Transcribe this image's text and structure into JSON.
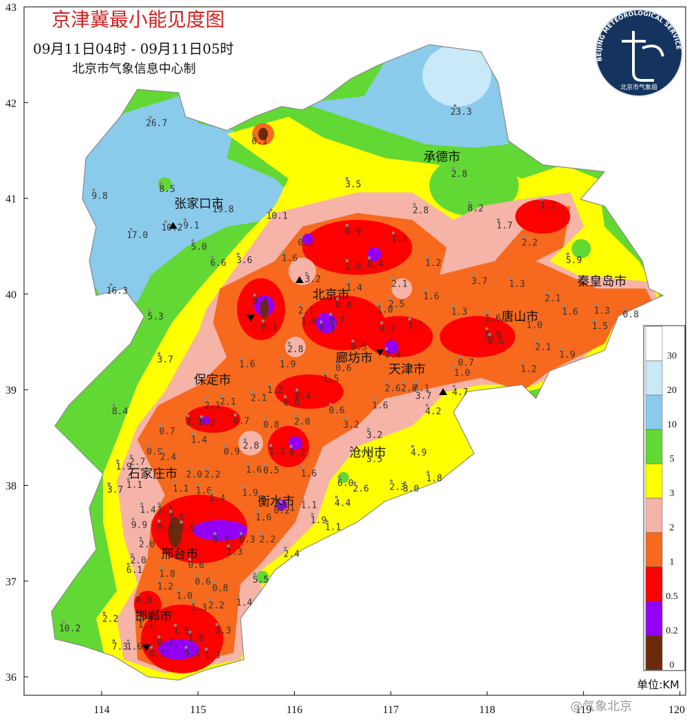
{
  "map": {
    "title": "京津冀最小能见度图",
    "subtitle": "09月11日04时 - 09月11日05时",
    "credit": "北京市气象信息中心制",
    "logo": {
      "ring": "BEIJING METEOROLOGICAL SERVICE",
      "name": "北京市气象局"
    },
    "watermark": "@气象北京",
    "xlim": [
      113.195,
      120.059
    ],
    "ylim": [
      35.807,
      43
    ],
    "xticks": [
      114,
      115,
      116,
      117,
      118,
      119,
      120
    ],
    "yticks": [
      36,
      37,
      38,
      39,
      40,
      41,
      42,
      43
    ],
    "legend": {
      "levels": [
        0,
        0.2,
        0.5,
        1,
        2,
        3,
        5,
        10,
        20,
        30
      ],
      "colors": [
        "#6b2a0a",
        "#9400f5",
        "#ff0000",
        "#f7691c",
        "#f6b3a8",
        "#ffff00",
        "#62d834",
        "#8acbec",
        "#c9e8f8",
        "#ffffff"
      ],
      "unit": "单位:KM"
    },
    "cities": [
      {
        "name": "张家口市",
        "lon": 115.01,
        "lat": 40.95
      },
      {
        "name": "承德市",
        "lon": 117.53,
        "lat": 41.44
      },
      {
        "name": "秦皇岛市",
        "lon": 119.19,
        "lat": 40.14
      },
      {
        "name": "北京市",
        "lon": 116.38,
        "lat": 40.0
      },
      {
        "name": "唐山市",
        "lon": 118.34,
        "lat": 39.77
      },
      {
        "name": "廊坊市",
        "lon": 116.62,
        "lat": 39.34
      },
      {
        "name": "天津市",
        "lon": 117.17,
        "lat": 39.22
      },
      {
        "name": "保定市",
        "lon": 115.15,
        "lat": 39.11
      },
      {
        "name": "沧州市",
        "lon": 116.76,
        "lat": 38.35
      },
      {
        "name": "石家庄市",
        "lon": 114.53,
        "lat": 38.13
      },
      {
        "name": "衡水市",
        "lon": 115.81,
        "lat": 37.84
      },
      {
        "name": "邢台市",
        "lon": 114.81,
        "lat": 37.29
      },
      {
        "name": "邯郸市",
        "lon": 114.54,
        "lat": 36.64
      }
    ],
    "stations": [
      {
        "lon": 117.73,
        "lat": 41.91,
        "value": 23.3
      },
      {
        "lon": 114.57,
        "lat": 41.79,
        "value": 26.7
      },
      {
        "lon": 115.64,
        "lat": 41.6,
        "value": 0.1
      },
      {
        "lon": 117.71,
        "lat": 41.26,
        "value": 2.8
      },
      {
        "lon": 114.68,
        "lat": 41.1,
        "value": 8.5
      },
      {
        "lon": 116.61,
        "lat": 41.15,
        "value": 3.5
      },
      {
        "lon": 113.98,
        "lat": 41.03,
        "value": 9.8
      },
      {
        "lon": 117.31,
        "lat": 40.88,
        "value": 2.8
      },
      {
        "lon": 117.88,
        "lat": 40.9,
        "value": 8.2
      },
      {
        "lon": 118.63,
        "lat": 40.93,
        "value": 1.1
      },
      {
        "lon": 115.26,
        "lat": 40.89,
        "value": 19.8
      },
      {
        "lon": 115.82,
        "lat": 40.82,
        "value": 10.1
      },
      {
        "lon": 114.73,
        "lat": 40.7,
        "value": 10.2
      },
      {
        "lon": 114.93,
        "lat": 40.72,
        "value": 9.1
      },
      {
        "lon": 118.18,
        "lat": 40.72,
        "value": 1.7
      },
      {
        "lon": 114.37,
        "lat": 40.62,
        "value": 17,
        "label": "17.0"
      },
      {
        "lon": 116.61,
        "lat": 40.66,
        "value": 0.9
      },
      {
        "lon": 115.01,
        "lat": 40.5,
        "value": 5,
        "label": "5.0"
      },
      {
        "lon": 116.12,
        "lat": 40.54,
        "value": 0.1
      },
      {
        "lon": 117.09,
        "lat": 40.58,
        "value": 1.1
      },
      {
        "lon": 118.44,
        "lat": 40.54,
        "value": 2.2
      },
      {
        "lon": 118.9,
        "lat": 40.36,
        "value": 5.9
      },
      {
        "lon": 115.21,
        "lat": 40.33,
        "value": 6.6
      },
      {
        "lon": 115.48,
        "lat": 40.36,
        "value": 3.6
      },
      {
        "lon": 115.95,
        "lat": 40.38,
        "value": 1.6
      },
      {
        "lon": 116.61,
        "lat": 40.29,
        "value": 1,
        "label": "1.0"
      },
      {
        "lon": 116.84,
        "lat": 40.32,
        "value": 0.4
      },
      {
        "lon": 117.44,
        "lat": 40.33,
        "value": 1.2
      },
      {
        "lon": 116.19,
        "lat": 40.16,
        "value": 3.2
      },
      {
        "lon": 117.92,
        "lat": 40.14,
        "value": 3.7
      },
      {
        "lon": 118.31,
        "lat": 40.11,
        "value": 1.3
      },
      {
        "lon": 114.16,
        "lat": 40.04,
        "value": 16.3
      },
      {
        "lon": 116.62,
        "lat": 40.07,
        "value": 1.4
      },
      {
        "lon": 117.09,
        "lat": 40.11,
        "value": 2.1
      },
      {
        "lon": 117.42,
        "lat": 39.98,
        "value": 1.6
      },
      {
        "lon": 118.68,
        "lat": 39.96,
        "value": 2.1
      },
      {
        "lon": 115.65,
        "lat": 39.93,
        "value": 0.1
      },
      {
        "lon": 117.06,
        "lat": 39.9,
        "value": 2.5
      },
      {
        "lon": 116.12,
        "lat": 39.83,
        "value": 2.1
      },
      {
        "lon": 116.51,
        "lat": 39.89,
        "value": 0.8
      },
      {
        "lon": 116.94,
        "lat": 39.84,
        "value": 1,
        "label": "1.0"
      },
      {
        "lon": 117.71,
        "lat": 39.82,
        "value": 1.3
      },
      {
        "lon": 118.86,
        "lat": 39.82,
        "value": 1.6
      },
      {
        "lon": 119.19,
        "lat": 39.83,
        "value": 1.3
      },
      {
        "lon": 119.49,
        "lat": 39.79,
        "value": 0.8
      },
      {
        "lon": 114.56,
        "lat": 39.77,
        "value": 5.3
      },
      {
        "lon": 116.15,
        "lat": 39.72,
        "value": 1,
        "label": "1.0"
      },
      {
        "lon": 116.44,
        "lat": 39.73,
        "value": 0.7
      },
      {
        "lon": 118.06,
        "lat": 39.75,
        "value": 1.6
      },
      {
        "lon": 115.74,
        "lat": 39.66,
        "value": 0.1
      },
      {
        "lon": 116.34,
        "lat": 39.65,
        "value": 0.1
      },
      {
        "lon": 117.26,
        "lat": 39.68,
        "value": 1.1
      },
      {
        "lon": 118.49,
        "lat": 39.68,
        "value": 1,
        "label": "1.0"
      },
      {
        "lon": 119.17,
        "lat": 39.67,
        "value": 1.5
      },
      {
        "lon": 116.97,
        "lat": 39.64,
        "value": 0.7
      },
      {
        "lon": 118.06,
        "lat": 39.58,
        "value": 0.9
      },
      {
        "lon": 118.09,
        "lat": 39.52,
        "value": 0.6
      },
      {
        "lon": 116.01,
        "lat": 39.43,
        "value": 2.8
      },
      {
        "lon": 116.67,
        "lat": 39.45,
        "value": 0.5
      },
      {
        "lon": 117.02,
        "lat": 39.37,
        "value": 0.4
      },
      {
        "lon": 118.58,
        "lat": 39.45,
        "value": 2.1
      },
      {
        "lon": 118.83,
        "lat": 39.37,
        "value": 1.9
      },
      {
        "lon": 114.66,
        "lat": 39.32,
        "value": 3.7
      },
      {
        "lon": 115.51,
        "lat": 39.27,
        "value": 1.6
      },
      {
        "lon": 115.93,
        "lat": 39.27,
        "value": 1.9
      },
      {
        "lon": 116.51,
        "lat": 39.23,
        "value": 0.6
      },
      {
        "lon": 117.78,
        "lat": 39.29,
        "value": 0.7
      },
      {
        "lon": 117.74,
        "lat": 39.18,
        "value": 1,
        "label": "1.0"
      },
      {
        "lon": 118.43,
        "lat": 39.22,
        "value": 1.2
      },
      {
        "lon": 116.38,
        "lat": 39.12,
        "value": 1.5
      },
      {
        "lon": 117.02,
        "lat": 39.02,
        "value": 2.6
      },
      {
        "lon": 117.19,
        "lat": 39.02,
        "value": 2.8
      },
      {
        "lon": 117.32,
        "lat": 39.02,
        "value": 4.1
      },
      {
        "lon": 117.72,
        "lat": 38.98,
        "value": 4.7
      },
      {
        "lon": 115.8,
        "lat": 39.0,
        "value": 1.2
      },
      {
        "lon": 117.34,
        "lat": 38.94,
        "value": 3.7
      },
      {
        "lon": 115.63,
        "lat": 38.92,
        "value": 2.1
      },
      {
        "lon": 116.09,
        "lat": 38.94,
        "value": 0.4
      },
      {
        "lon": 115.15,
        "lat": 38.84,
        "value": 2.1
      },
      {
        "lon": 115.31,
        "lat": 38.88,
        "value": 2.1
      },
      {
        "lon": 115.97,
        "lat": 38.87,
        "value": 0.8
      },
      {
        "lon": 116.89,
        "lat": 38.84,
        "value": 1.6
      },
      {
        "lon": 114.19,
        "lat": 38.78,
        "value": 8.4
      },
      {
        "lon": 117.44,
        "lat": 38.78,
        "value": 4.2
      },
      {
        "lon": 116.44,
        "lat": 38.79,
        "value": 0.6
      },
      {
        "lon": 114.96,
        "lat": 38.67,
        "value": 2.3
      },
      {
        "lon": 115.1,
        "lat": 38.66,
        "value": 0.2
      },
      {
        "lon": 115.45,
        "lat": 38.68,
        "value": 0.7
      },
      {
        "lon": 115.76,
        "lat": 38.64,
        "value": 0.8
      },
      {
        "lon": 116.08,
        "lat": 38.67,
        "value": 2,
        "label": "2.0"
      },
      {
        "lon": 116.59,
        "lat": 38.64,
        "value": 3.2
      },
      {
        "lon": 114.68,
        "lat": 38.57,
        "value": 0.7
      },
      {
        "lon": 115.01,
        "lat": 38.48,
        "value": 1.4
      },
      {
        "lon": 116.83,
        "lat": 38.53,
        "value": 3.2
      },
      {
        "lon": 115.55,
        "lat": 38.42,
        "value": 2.8
      },
      {
        "lon": 116.03,
        "lat": 38.35,
        "value": 0.2
      },
      {
        "lon": 114.55,
        "lat": 38.36,
        "value": 0.9
      },
      {
        "lon": 114.69,
        "lat": 38.3,
        "value": 2.4
      },
      {
        "lon": 115.35,
        "lat": 38.36,
        "value": 0.9
      },
      {
        "lon": 115.82,
        "lat": 38.36,
        "value": 1.3
      },
      {
        "lon": 117.29,
        "lat": 38.35,
        "value": 4.9
      },
      {
        "lon": 116.83,
        "lat": 38.28,
        "value": 3.5
      },
      {
        "lon": 114.23,
        "lat": 38.2,
        "value": 1.9
      },
      {
        "lon": 114.37,
        "lat": 38.25,
        "value": 2.7
      },
      {
        "lon": 115.58,
        "lat": 38.17,
        "value": 1.6
      },
      {
        "lon": 115.76,
        "lat": 38.16,
        "value": 0.5
      },
      {
        "lon": 114.96,
        "lat": 38.12,
        "value": 2,
        "label": "2.0"
      },
      {
        "lon": 115.15,
        "lat": 38.12,
        "value": 2.2
      },
      {
        "lon": 116.15,
        "lat": 38.13,
        "value": 1.6
      },
      {
        "lon": 117.45,
        "lat": 38.08,
        "value": 1.8
      },
      {
        "lon": 114.34,
        "lat": 38.01,
        "value": 1.1
      },
      {
        "lon": 116.53,
        "lat": 38.03,
        "value": 6,
        "label": "6.0"
      },
      {
        "lon": 116.69,
        "lat": 37.97,
        "value": 2.6
      },
      {
        "lon": 114.14,
        "lat": 37.96,
        "value": 3.7
      },
      {
        "lon": 117.07,
        "lat": 37.99,
        "value": 2.3
      },
      {
        "lon": 117.21,
        "lat": 37.97,
        "value": 3,
        "label": "3.0"
      },
      {
        "lon": 114.82,
        "lat": 37.97,
        "value": 1.1
      },
      {
        "lon": 115.06,
        "lat": 37.95,
        "value": 1.6
      },
      {
        "lon": 115.54,
        "lat": 37.93,
        "value": 1.9
      },
      {
        "lon": 115.92,
        "lat": 37.77,
        "value": 2.1
      },
      {
        "lon": 116.15,
        "lat": 37.8,
        "value": 1.1
      },
      {
        "lon": 115.2,
        "lat": 37.87,
        "value": 1.4
      },
      {
        "lon": 116.5,
        "lat": 37.82,
        "value": 4.4
      },
      {
        "lon": 115.87,
        "lat": 37.74,
        "value": 0.2
      },
      {
        "lon": 114.48,
        "lat": 37.75,
        "value": 1.4
      },
      {
        "lon": 114.66,
        "lat": 37.75,
        "value": 1.1
      },
      {
        "lon": 115.68,
        "lat": 37.67,
        "value": 1.6
      },
      {
        "lon": 116.25,
        "lat": 37.64,
        "value": 1.9
      },
      {
        "lon": 116.4,
        "lat": 37.57,
        "value": 1.1
      },
      {
        "lon": 114.78,
        "lat": 37.67,
        "value": 0.6
      },
      {
        "lon": 114.89,
        "lat": 37.56,
        "value": 0.6
      },
      {
        "lon": 114.39,
        "lat": 37.59,
        "value": 9.9
      },
      {
        "lon": 114.66,
        "lat": 37.57,
        "value": 0.3
      },
      {
        "lon": 115.24,
        "lat": 37.44,
        "value": 0.3
      },
      {
        "lon": 115.51,
        "lat": 37.44,
        "value": 0.3
      },
      {
        "lon": 115.72,
        "lat": 37.44,
        "value": 2.2
      },
      {
        "lon": 114.47,
        "lat": 37.39,
        "value": 2,
        "label": "2.0"
      },
      {
        "lon": 115.38,
        "lat": 37.31,
        "value": 1.3
      },
      {
        "lon": 115.97,
        "lat": 37.29,
        "value": 2.4
      },
      {
        "lon": 114.38,
        "lat": 37.22,
        "value": 2,
        "label": "2.0"
      },
      {
        "lon": 114.98,
        "lat": 37.17,
        "value": 0.6
      },
      {
        "lon": 114.34,
        "lat": 37.12,
        "value": 6.1
      },
      {
        "lon": 114.68,
        "lat": 37.08,
        "value": 1.8
      },
      {
        "lon": 115.65,
        "lat": 37.02,
        "value": 5.5
      },
      {
        "lon": 115.05,
        "lat": 37.0,
        "value": 0.6
      },
      {
        "lon": 115.23,
        "lat": 36.93,
        "value": 0.8
      },
      {
        "lon": 114.66,
        "lat": 36.95,
        "value": 1.2
      },
      {
        "lon": 114.86,
        "lat": 36.85,
        "value": 1,
        "label": "1.0"
      },
      {
        "lon": 115.48,
        "lat": 36.78,
        "value": 1.4
      },
      {
        "lon": 114.44,
        "lat": 36.8,
        "value": 0.8
      },
      {
        "lon": 115.01,
        "lat": 36.73,
        "value": 1.3
      },
      {
        "lon": 115.19,
        "lat": 36.75,
        "value": 2.2
      },
      {
        "lon": 114.09,
        "lat": 36.61,
        "value": 2.2
      },
      {
        "lon": 114.46,
        "lat": 36.55,
        "value": 1.1
      },
      {
        "lon": 113.67,
        "lat": 36.51,
        "value": 10.2
      },
      {
        "lon": 115.26,
        "lat": 36.49,
        "value": 3.3
      },
      {
        "lon": 114.83,
        "lat": 36.48,
        "value": 1.5
      },
      {
        "lon": 114.98,
        "lat": 36.41,
        "value": 1,
        "label": "1.0"
      },
      {
        "lon": 114.19,
        "lat": 36.32,
        "value": 7.3
      },
      {
        "lon": 114.34,
        "lat": 36.32,
        "value": 1.6
      },
      {
        "lon": 114.66,
        "lat": 36.36,
        "value": 0.7
      },
      {
        "lon": 114.58,
        "lat": 36.25,
        "value": 0.1
      },
      {
        "lon": 114.94,
        "lat": 36.25,
        "value": 0.1
      },
      {
        "lon": 115.15,
        "lat": 36.23,
        "value": 1.3
      }
    ]
  }
}
